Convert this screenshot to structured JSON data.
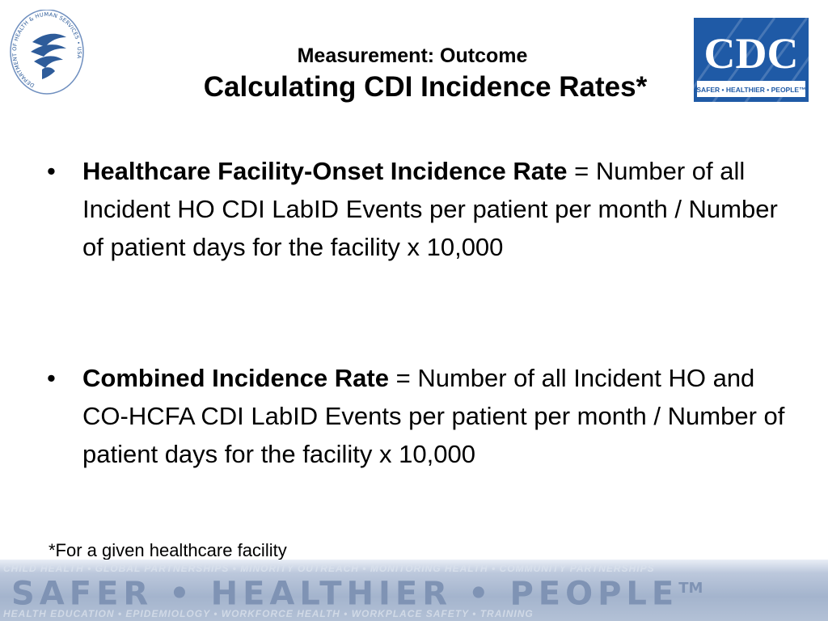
{
  "header": {
    "subtitle": "Measurement: Outcome",
    "title": "Calculating CDI Incidence Rates*",
    "hhs_seal_text": "DEPARTMENT OF HEALTH & HUMAN SERVICES • USA",
    "cdc_logo_text": "CDC",
    "cdc_tagline": "SAFER • HEALTHIER • PEOPLE™"
  },
  "bullets": [
    {
      "term": "Healthcare Facility-Onset Incidence Rate",
      "equals": " = ",
      "definition": "Number of all Incident HO CDI LabID Events per patient per month / Number of patient days for the facility x 10,000"
    },
    {
      "term": "Combined Incidence Rate",
      "equals": " = ",
      "definition": "Number of all Incident HO and CO-HCFA CDI LabID Events per patient per month / Number of patient days for the facility x 10,000"
    }
  ],
  "bullet_symbol": "•",
  "footnote": "*For a given healthcare facility",
  "footer": {
    "slogan": "SAFER • HEALTHIER • PEOPLE",
    "trademark": "TM",
    "faint_top": "CHILD HEALTH • GLOBAL PARTNERSHIPS • MINORITY OUTREACH • MONITORING HEALTH • COMMUNITY PARTNERSHIPS",
    "faint_bottom": "HEALTH EDUCATION • EPIDEMIOLOGY • WORKFORCE HEALTH • WORKPLACE SAFETY • TRAINING"
  },
  "colors": {
    "cdc_blue": "#1f5aa6",
    "banner_text": "#7f93b4",
    "seal_blue": "#2e5c9a"
  }
}
